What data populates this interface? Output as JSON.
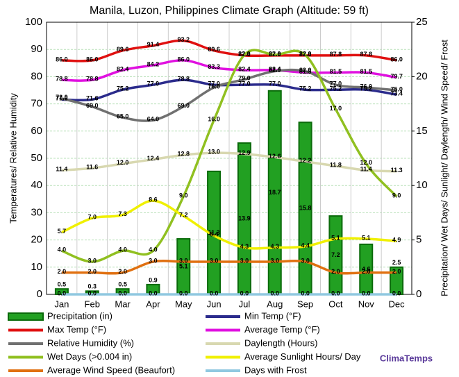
{
  "chart_data": {
    "type": "combo",
    "title": "Manila, Luzon, Philippines Climate Graph (Altitude: 59 ft)",
    "y_label": "Temperatures/ Relative Humidity",
    "y2_label": "Precipitation/ Wet Days/ Sunlight/ Daylength/ Wind Speed/ Frost",
    "watermark": "ClimaTemps",
    "categories": [
      "Jan",
      "Feb",
      "Mar",
      "Apr",
      "May",
      "Jun",
      "Jul",
      "Aug",
      "Sep",
      "Oct",
      "Nov",
      "Dec"
    ],
    "ylim": [
      0,
      100
    ],
    "yticks": [
      0,
      10,
      20,
      30,
      40,
      50,
      60,
      70,
      80,
      90,
      100
    ],
    "y2lim": [
      0,
      25
    ],
    "y2ticks": [
      0,
      5,
      10,
      15,
      20,
      25
    ],
    "grid": true,
    "series": [
      {
        "name": "Precipitation (in)",
        "type": "bar",
        "axis": "y2",
        "color": "#22a022",
        "values": [
          0.5,
          0.3,
          0.5,
          0.9,
          5.1,
          11.3,
          13.9,
          18.7,
          15.8,
          7.2,
          4.6,
          2.5
        ],
        "value_labels": [
          "0.5",
          "0.3",
          "0.5",
          "0.9",
          "5.1",
          "11.3",
          "13.9",
          "18.7",
          "15.8",
          "7.2",
          "4.6",
          "2.5"
        ]
      },
      {
        "name": "Min Temp (°F)",
        "type": "line",
        "color": "#2b2b8c",
        "values": [
          71.6,
          71.6,
          75.2,
          77.0,
          78.8,
          77.0,
          77.0,
          77.0,
          75.2,
          75.2,
          75.2,
          73.4
        ],
        "value_labels": [
          "71.6",
          "71.6",
          "75.2",
          "77.0",
          "78.8",
          "77.0",
          "77.0",
          "77.0",
          "75.2",
          "75.2",
          "75.2",
          "73.4"
        ]
      },
      {
        "name": "Max Temp (°F)",
        "type": "line",
        "color": "#e01010",
        "values": [
          86.0,
          86.0,
          89.6,
          91.4,
          93.2,
          89.6,
          87.8,
          87.8,
          87.8,
          87.8,
          87.8,
          86.0
        ],
        "value_labels": [
          "86.0",
          "86.0",
          "89.6",
          "91.4",
          "93.2",
          "89.6",
          "87.8",
          "87.8",
          "87.8",
          "87.8",
          "87.8",
          "86.0"
        ]
      },
      {
        "name": "Average Temp (°F)",
        "type": "line",
        "color": "#e010e0",
        "values": [
          78.8,
          78.8,
          82.4,
          84.2,
          86.0,
          83.3,
          82.4,
          82.4,
          81.5,
          81.5,
          81.5,
          79.7
        ],
        "value_labels": [
          "78.8",
          "78.8",
          "82.4",
          "84.2",
          "86.0",
          "83.3",
          "82.4",
          "82.4",
          "81.5",
          "81.5",
          "81.5",
          "79.7"
        ]
      },
      {
        "name": "Relative Humidity (%)",
        "type": "line",
        "color": "#707070",
        "values": [
          72,
          69,
          65,
          64,
          69,
          76,
          79,
          82,
          82,
          77,
          76,
          75
        ],
        "value_labels": [
          "72.0",
          "69.0",
          "65.0",
          "64.0",
          "69.0",
          "76.0",
          "79.0",
          "82.0",
          "82.0",
          "77.0",
          "76.0",
          "75.0"
        ]
      },
      {
        "name": "Daylength (Hours)",
        "type": "line",
        "axis": "y2",
        "color": "#d8d8b0",
        "values": [
          11.4,
          11.6,
          12.0,
          12.4,
          12.8,
          13.0,
          12.9,
          12.6,
          12.2,
          11.8,
          11.4,
          11.3
        ],
        "value_labels": [
          "11.4",
          "11.6",
          "12.0",
          "12.4",
          "12.8",
          "13.0",
          "12.9",
          "12.6",
          "12.2",
          "11.8",
          "11.4",
          "11.3"
        ]
      },
      {
        "name": "Wet Days (>0.004 in)",
        "type": "line",
        "axis": "y2",
        "color": "#90c020",
        "values": [
          4,
          3,
          4,
          4,
          9,
          16,
          22,
          22,
          22,
          17,
          12,
          9
        ],
        "value_labels": [
          "4.0",
          "3.0",
          "4.0",
          "4.0",
          "9.0",
          "16.0",
          "22.0",
          "22.0",
          "22.0",
          "17.0",
          "12.0",
          "9.0"
        ]
      },
      {
        "name": "Average Sunlight Hours/ Day",
        "type": "line",
        "axis": "y2",
        "color": "#f0f000",
        "values": [
          5.7,
          7.0,
          7.3,
          8.6,
          7.2,
          5.4,
          4.3,
          4.3,
          4.4,
          5.1,
          5.1,
          4.9
        ],
        "value_labels": [
          "5.7",
          "7.0",
          "7.3",
          "8.6",
          "7.2",
          "5.4",
          "4.3",
          "4.3",
          "4.4",
          "5.1",
          "5.1",
          "4.9"
        ]
      },
      {
        "name": "Average Wind Speed (Beaufort)",
        "type": "line",
        "axis": "y2",
        "color": "#e07010",
        "values": [
          2,
          2,
          2,
          3,
          3,
          3,
          3,
          3,
          3,
          2,
          2,
          2
        ],
        "value_labels": [
          "2.0",
          "2.0",
          "2.0",
          "3.0",
          "3.0",
          "3.0",
          "3.0",
          "3.0",
          "3.0",
          "2.0",
          "2.0",
          "2.0"
        ]
      },
      {
        "name": "Days with Frost",
        "type": "line",
        "axis": "y2",
        "color": "#90c8e0",
        "values": [
          0,
          0,
          0,
          0,
          0,
          0,
          0,
          0,
          0,
          0,
          0,
          0
        ],
        "value_labels": [
          "0.0",
          "0.0",
          "0.0",
          "0.0",
          "0.0",
          "0.0",
          "0.0",
          "0.0",
          "0.0",
          "0.0",
          "0.0",
          "0.0"
        ]
      }
    ]
  }
}
